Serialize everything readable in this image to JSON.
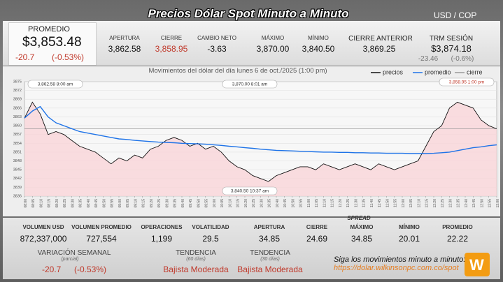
{
  "title": "Precios Dólar Spot Minuto a Minuto",
  "pair": "USD / COP",
  "header": {
    "promedio": {
      "label": "PROMEDIO",
      "value": "$3,853.48",
      "change": "-20.7",
      "change_pct": "(-0.53%)"
    },
    "stats": [
      {
        "label": "APERTURA",
        "value": "3,862.58"
      },
      {
        "label": "CIERRE",
        "value": "3,858.95"
      },
      {
        "label": "CAMBIO NETO",
        "value": "-3.63"
      },
      {
        "label": "MÁXIMO",
        "value": "3,870.00"
      },
      {
        "label": "MÍNIMO",
        "value": "3,840.50"
      }
    ],
    "cierre_anterior": {
      "label": "CIERRE ANTERIOR",
      "value": "3,869.25"
    },
    "trm": {
      "label": "TRM SESIÓN",
      "value": "$3,874.18",
      "change": "-23.46",
      "change_pct": "(-0.6%)"
    }
  },
  "chart_data": {
    "type": "line",
    "subtitle": "Movimientos del dólar del día lunes 6 de oct./2025 (1:00 pm)",
    "x": [
      "08:00",
      "08:05",
      "08:10",
      "08:15",
      "08:20",
      "08:25",
      "08:30",
      "08:35",
      "08:40",
      "08:45",
      "08:50",
      "08:55",
      "09:00",
      "09:05",
      "09:10",
      "09:15",
      "09:20",
      "09:25",
      "09:30",
      "09:35",
      "09:40",
      "09:45",
      "09:50",
      "09:55",
      "10:00",
      "10:05",
      "10:10",
      "10:15",
      "10:20",
      "10:25",
      "10:30",
      "10:35",
      "10:40",
      "10:45",
      "10:50",
      "10:55",
      "11:00",
      "11:05",
      "11:10",
      "11:15",
      "11:20",
      "11:25",
      "11:30",
      "11:35",
      "11:40",
      "11:45",
      "11:50",
      "11:55",
      "12:00",
      "12:05",
      "12:10",
      "12:15",
      "12:20",
      "12:25",
      "12:30",
      "12:35",
      "12:40",
      "12:45",
      "12:50",
      "12:55",
      "13:00"
    ],
    "series": [
      {
        "name": "precios",
        "color": "#111111",
        "values": [
          3862.58,
          3868,
          3864,
          3857,
          3858,
          3857,
          3855,
          3853,
          3852,
          3851,
          3849,
          3847,
          3849,
          3848,
          3850,
          3849,
          3852,
          3853,
          3855,
          3856,
          3855,
          3853,
          3854,
          3852,
          3853,
          3851,
          3848,
          3846,
          3845,
          3843,
          3842,
          3841,
          3843,
          3844,
          3845,
          3846,
          3846,
          3845,
          3847,
          3846,
          3845,
          3846,
          3847,
          3846,
          3845,
          3847,
          3846,
          3845,
          3846,
          3847,
          3848,
          3853,
          3858,
          3860,
          3866,
          3868,
          3867,
          3866,
          3862,
          3860,
          3858.95
        ]
      },
      {
        "name": "promedio",
        "color": "#1e73e8",
        "values": [
          3862.58,
          3865,
          3866.5,
          3863,
          3861,
          3860,
          3859,
          3858,
          3857.5,
          3857,
          3856.5,
          3856,
          3855.5,
          3855.3,
          3855,
          3854.8,
          3854.6,
          3854.4,
          3854.3,
          3854.2,
          3854,
          3853.9,
          3853.8,
          3853.7,
          3853.5,
          3853.3,
          3853,
          3852.8,
          3852.5,
          3852.3,
          3852,
          3851.8,
          3851.6,
          3851.5,
          3851.4,
          3851.3,
          3851.2,
          3851.1,
          3851,
          3851,
          3850.9,
          3850.9,
          3850.8,
          3850.8,
          3850.7,
          3850.7,
          3850.6,
          3850.6,
          3850.6,
          3850.5,
          3850.5,
          3850.5,
          3850.6,
          3850.8,
          3851,
          3851.5,
          3852,
          3852.5,
          3852.8,
          3853.2,
          3853.48
        ]
      }
    ],
    "close": {
      "name": "cierre",
      "color": "#999999",
      "value": 3858.95
    },
    "ylim": [
      3836,
      3875
    ],
    "yticks": [
      3836,
      3839,
      3842,
      3845,
      3848,
      3851,
      3854,
      3857,
      3860,
      3863,
      3866,
      3869,
      3872,
      3875
    ],
    "grid": true,
    "annotations": [
      "3,862.58   8:00 am",
      "3,870.00   8:01 am",
      "3,840.50   10:37 am",
      "3,858.95   1:00 pm"
    ]
  },
  "footer": {
    "stats": [
      {
        "label": "VOLUMEN USD",
        "value": "872,337,000"
      },
      {
        "label": "VOLUMEN PROMEDIO",
        "value": "727,554"
      },
      {
        "label": "OPERACIONES",
        "value": "1,199"
      },
      {
        "label": "VOLATILIDAD",
        "value": "29.5"
      }
    ],
    "spread": {
      "title": "SPREAD",
      "items": [
        {
          "label": "APERTURA",
          "value": "34.85"
        },
        {
          "label": "CIERRE",
          "value": "24.69"
        },
        {
          "label": "MÁXIMO",
          "value": "34.85"
        },
        {
          "label": "MÍNIMO",
          "value": "20.01"
        },
        {
          "label": "PROMEDIO",
          "value": "22.22"
        }
      ]
    },
    "variacion": {
      "label": "VARIACIÓN SEMANAL",
      "sub": "(parcial)",
      "value": "-20.7",
      "pct": "(-0.53%)"
    },
    "tendencias": [
      {
        "label": "TENDENCIA",
        "sub": "(60 días)",
        "value": "Bajista Moderada"
      },
      {
        "label": "TENDENCIA",
        "sub": "(30 días)",
        "value": "Bajista Moderada"
      }
    ],
    "cta": {
      "text": "Siga los movimientos minuto a minuto:",
      "url": "https://dolar.wilkinsonpc.com.co/spot"
    }
  }
}
